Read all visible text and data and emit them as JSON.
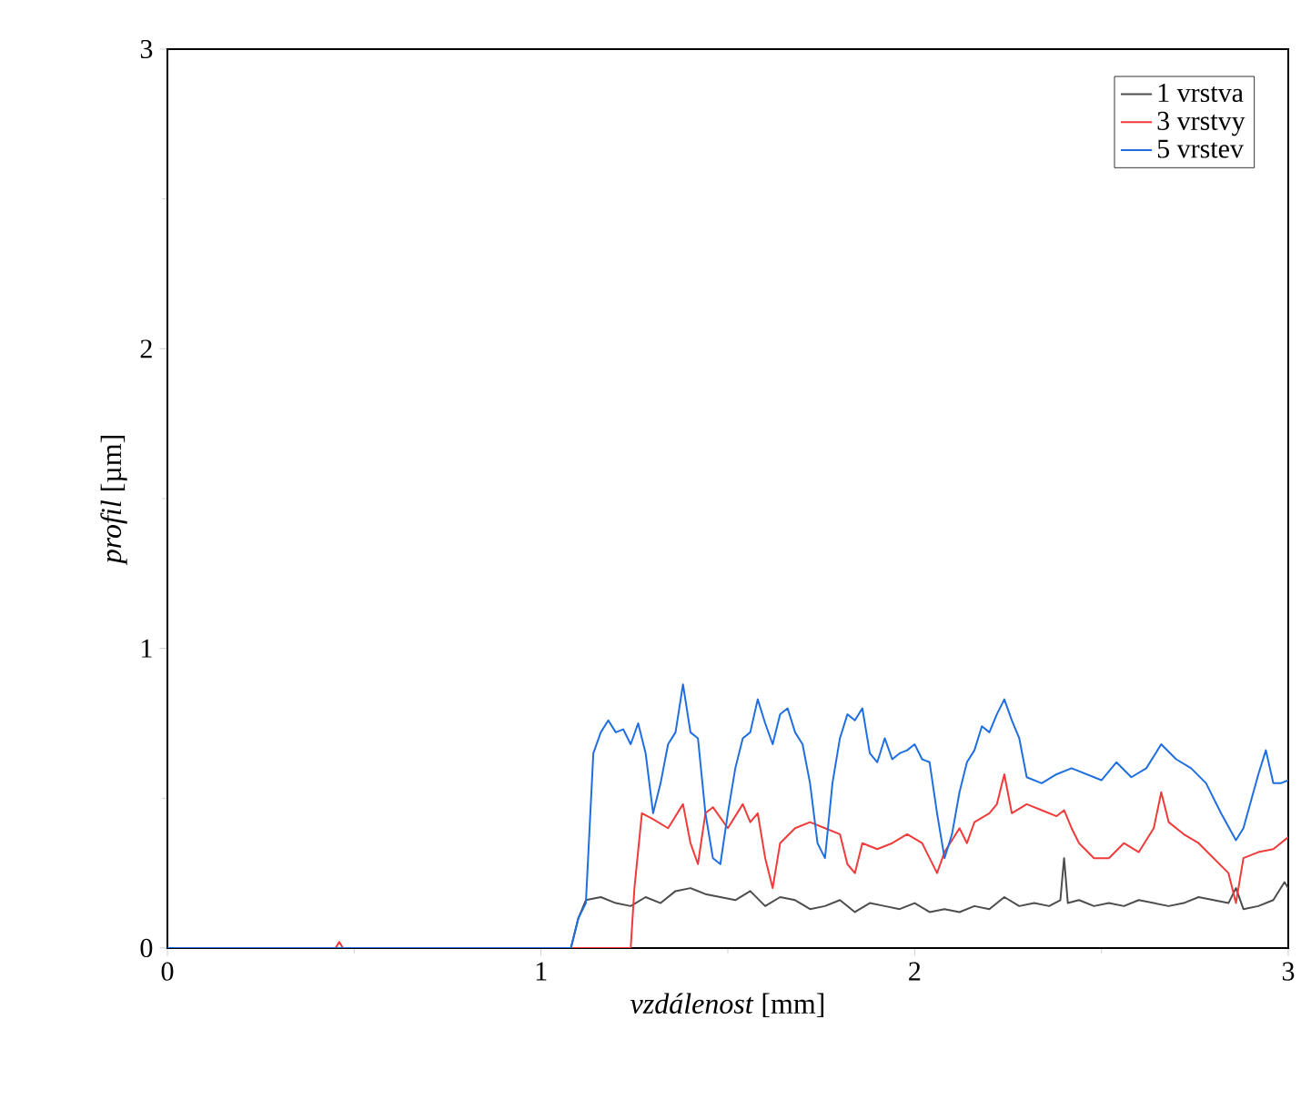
{
  "chart_data": {
    "type": "line",
    "xlabel": "*vzdálenost* [mm]",
    "ylabel": "*profil* [µm]",
    "xlim": [
      0,
      3
    ],
    "ylim": [
      0,
      3
    ],
    "xticks": [
      0,
      1,
      2,
      3
    ],
    "yticks": [
      0,
      1,
      2,
      3
    ],
    "legend": "top right",
    "grid": false,
    "series": [
      {
        "name": "1 vrstva",
        "color": "#4d4d4d",
        "x": [
          0,
          0.5,
          1.08,
          1.1,
          1.12,
          1.16,
          1.2,
          1.24,
          1.28,
          1.32,
          1.36,
          1.4,
          1.44,
          1.48,
          1.52,
          1.56,
          1.6,
          1.64,
          1.68,
          1.72,
          1.76,
          1.8,
          1.84,
          1.88,
          1.92,
          1.96,
          2.0,
          2.04,
          2.08,
          2.12,
          2.16,
          2.2,
          2.24,
          2.28,
          2.32,
          2.36,
          2.39,
          2.4,
          2.41,
          2.44,
          2.48,
          2.52,
          2.56,
          2.6,
          2.64,
          2.68,
          2.72,
          2.76,
          2.8,
          2.84,
          2.86,
          2.88,
          2.92,
          2.96,
          2.99,
          3.0
        ],
        "values": [
          0,
          0,
          0,
          0.1,
          0.16,
          0.17,
          0.15,
          0.14,
          0.17,
          0.15,
          0.19,
          0.2,
          0.18,
          0.17,
          0.16,
          0.19,
          0.14,
          0.17,
          0.16,
          0.13,
          0.14,
          0.16,
          0.12,
          0.15,
          0.14,
          0.13,
          0.15,
          0.12,
          0.13,
          0.12,
          0.14,
          0.13,
          0.17,
          0.14,
          0.15,
          0.14,
          0.16,
          0.3,
          0.15,
          0.16,
          0.14,
          0.15,
          0.14,
          0.16,
          0.15,
          0.14,
          0.15,
          0.17,
          0.16,
          0.15,
          0.2,
          0.13,
          0.14,
          0.16,
          0.22,
          0.2
        ]
      },
      {
        "name": "3 vrstvy",
        "color": "#ef3b3b",
        "x": [
          0,
          0.45,
          0.46,
          0.47,
          1.24,
          1.25,
          1.27,
          1.3,
          1.34,
          1.38,
          1.4,
          1.42,
          1.44,
          1.46,
          1.5,
          1.54,
          1.56,
          1.58,
          1.6,
          1.62,
          1.64,
          1.68,
          1.72,
          1.76,
          1.8,
          1.82,
          1.84,
          1.86,
          1.9,
          1.94,
          1.98,
          2.02,
          2.04,
          2.06,
          2.08,
          2.1,
          2.12,
          2.14,
          2.16,
          2.2,
          2.22,
          2.24,
          2.26,
          2.3,
          2.34,
          2.38,
          2.4,
          2.42,
          2.44,
          2.48,
          2.52,
          2.56,
          2.6,
          2.64,
          2.66,
          2.68,
          2.72,
          2.76,
          2.8,
          2.84,
          2.86,
          2.88,
          2.92,
          2.96,
          3.0
        ],
        "values": [
          0,
          0,
          0.02,
          0,
          0,
          0.2,
          0.45,
          0.43,
          0.4,
          0.48,
          0.35,
          0.28,
          0.45,
          0.47,
          0.4,
          0.48,
          0.42,
          0.45,
          0.3,
          0.2,
          0.35,
          0.4,
          0.42,
          0.4,
          0.38,
          0.28,
          0.25,
          0.35,
          0.33,
          0.35,
          0.38,
          0.35,
          0.3,
          0.25,
          0.32,
          0.36,
          0.4,
          0.35,
          0.42,
          0.45,
          0.48,
          0.58,
          0.45,
          0.48,
          0.46,
          0.44,
          0.46,
          0.4,
          0.35,
          0.3,
          0.3,
          0.35,
          0.32,
          0.4,
          0.52,
          0.42,
          0.38,
          0.35,
          0.3,
          0.25,
          0.15,
          0.3,
          0.32,
          0.33,
          0.37
        ]
      },
      {
        "name": "5 vrstev",
        "color": "#1f6fe0",
        "x": [
          0,
          1.08,
          1.1,
          1.12,
          1.14,
          1.16,
          1.18,
          1.2,
          1.22,
          1.24,
          1.26,
          1.28,
          1.3,
          1.32,
          1.34,
          1.36,
          1.38,
          1.4,
          1.42,
          1.44,
          1.46,
          1.48,
          1.5,
          1.52,
          1.54,
          1.56,
          1.58,
          1.6,
          1.62,
          1.64,
          1.66,
          1.68,
          1.7,
          1.72,
          1.74,
          1.76,
          1.78,
          1.8,
          1.82,
          1.84,
          1.86,
          1.88,
          1.9,
          1.92,
          1.94,
          1.96,
          1.98,
          2.0,
          2.02,
          2.04,
          2.06,
          2.08,
          2.1,
          2.12,
          2.14,
          2.16,
          2.18,
          2.2,
          2.22,
          2.24,
          2.26,
          2.28,
          2.3,
          2.34,
          2.38,
          2.42,
          2.46,
          2.5,
          2.54,
          2.58,
          2.62,
          2.66,
          2.7,
          2.74,
          2.78,
          2.82,
          2.86,
          2.88,
          2.92,
          2.94,
          2.96,
          2.98,
          3.0
        ],
        "values": [
          0,
          0,
          0.1,
          0.15,
          0.65,
          0.72,
          0.76,
          0.72,
          0.73,
          0.68,
          0.75,
          0.65,
          0.45,
          0.55,
          0.68,
          0.72,
          0.88,
          0.72,
          0.7,
          0.45,
          0.3,
          0.28,
          0.45,
          0.6,
          0.7,
          0.72,
          0.83,
          0.75,
          0.68,
          0.78,
          0.8,
          0.72,
          0.68,
          0.55,
          0.35,
          0.3,
          0.55,
          0.7,
          0.78,
          0.76,
          0.8,
          0.65,
          0.62,
          0.7,
          0.63,
          0.65,
          0.66,
          0.68,
          0.63,
          0.62,
          0.45,
          0.3,
          0.38,
          0.52,
          0.62,
          0.66,
          0.74,
          0.72,
          0.78,
          0.83,
          0.76,
          0.7,
          0.57,
          0.55,
          0.58,
          0.6,
          0.58,
          0.56,
          0.62,
          0.57,
          0.6,
          0.68,
          0.63,
          0.6,
          0.55,
          0.45,
          0.36,
          0.4,
          0.58,
          0.66,
          0.55,
          0.55,
          0.56
        ]
      }
    ]
  }
}
